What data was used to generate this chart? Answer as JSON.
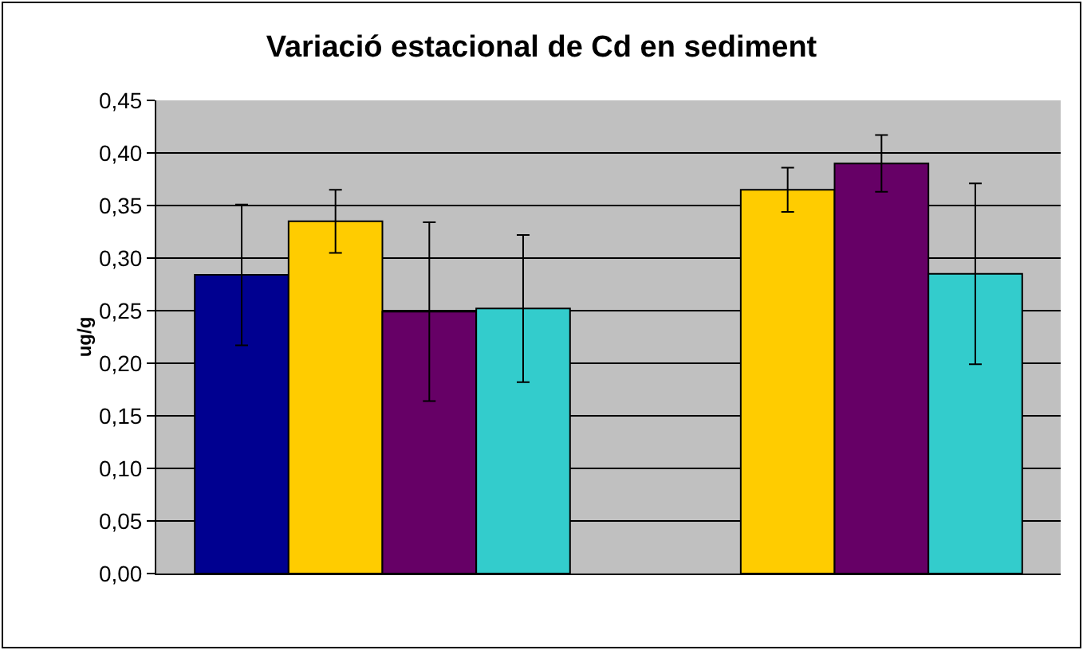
{
  "chart_data": {
    "type": "bar",
    "title": "Variació estacional de Cd en sediment",
    "ylabel": "ug/g",
    "categories": [
      null,
      null
    ],
    "series": [
      {
        "color": "#000090",
        "values": [
          0.284,
          null
        ],
        "errors": [
          0.067,
          null
        ]
      },
      {
        "color": "#ffcc00",
        "values": [
          0.335,
          0.365
        ],
        "errors": [
          0.03,
          0.021
        ]
      },
      {
        "color": "#660066",
        "values": [
          0.249,
          0.39
        ],
        "errors": [
          0.085,
          0.027
        ]
      },
      {
        "color": "#33cccc",
        "values": [
          0.252,
          0.285
        ],
        "errors": [
          0.07,
          0.086
        ]
      }
    ],
    "ylim": [
      0,
      0.45
    ],
    "yticks": [
      {
        "value": 0,
        "label": "0,00"
      },
      {
        "value": 0.05,
        "label": "0,05"
      },
      {
        "value": 0.1,
        "label": "0,10"
      },
      {
        "value": 0.15,
        "label": "0,15"
      },
      {
        "value": 0.2,
        "label": "0,20"
      },
      {
        "value": 0.25,
        "label": "0,25"
      },
      {
        "value": 0.3,
        "label": "0,30"
      },
      {
        "value": 0.35,
        "label": "0,35"
      },
      {
        "value": 0.4,
        "label": "0,40"
      },
      {
        "value": 0.45,
        "label": "0,45"
      }
    ],
    "grid": "y"
  }
}
